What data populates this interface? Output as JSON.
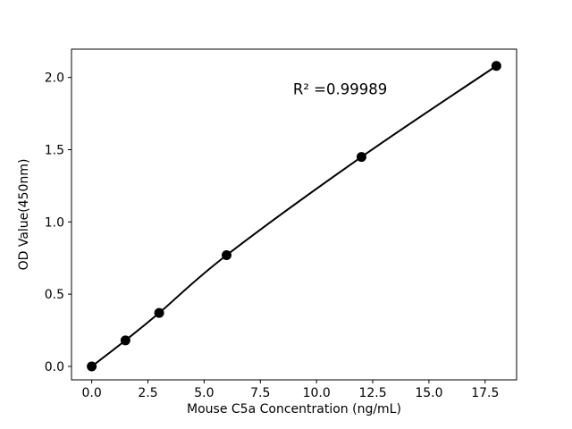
{
  "chart_data": {
    "type": "line",
    "title": "",
    "xlabel": "Mouse C5a Concentration (ng/mL)",
    "ylabel": "OD Value(450nm)",
    "x": [
      0,
      1.5,
      3,
      6,
      12,
      18
    ],
    "y": [
      0.0,
      0.18,
      0.37,
      0.77,
      1.45,
      2.08
    ],
    "annotation": {
      "text": "R² =0.99989",
      "x": 11.05,
      "y": 1.92
    },
    "xlim": [
      -0.9,
      18.9
    ],
    "ylim": [
      -0.093,
      2.196
    ],
    "xticks": {
      "values": [
        0,
        2.5,
        5,
        7.5,
        10,
        12.5,
        15,
        17.5
      ],
      "labels": [
        "0.0",
        "2.5",
        "5.0",
        "7.5",
        "10.0",
        "12.5",
        "15.0",
        "17.5"
      ]
    },
    "yticks": {
      "values": [
        0,
        0.5,
        1.0,
        1.5,
        2.0
      ],
      "labels": [
        "0.0",
        "0.5",
        "1.0",
        "1.5",
        "2.0"
      ]
    },
    "grid": false,
    "legend": "none",
    "marker": "circle",
    "marker_radius": 5.5,
    "line_width": 2,
    "line_color": "#000000",
    "marker_color": "#000000",
    "text_color": "#000000",
    "spine_color": "#000000",
    "background_color": "#ffffff"
  }
}
